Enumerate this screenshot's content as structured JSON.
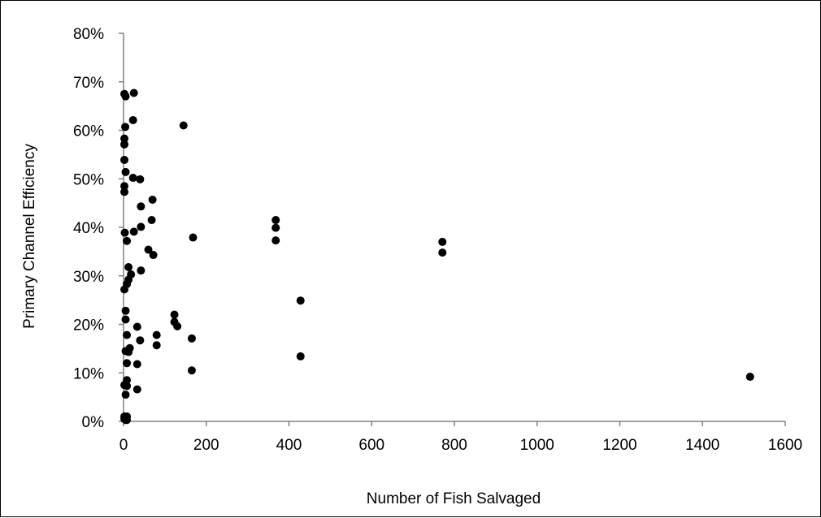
{
  "chart_data": {
    "type": "scatter",
    "title": "",
    "xlabel": "Number of Fish Salvaged",
    "ylabel": "Primary Channel Efficiency",
    "xlim": [
      0,
      1600
    ],
    "ylim": [
      0,
      0.8
    ],
    "x_ticks": [
      0,
      200,
      400,
      600,
      800,
      1000,
      1200,
      1400,
      1600
    ],
    "x_tick_labels": [
      "0",
      "200",
      "400",
      "600",
      "800",
      "1000",
      "1200",
      "1400",
      "1600"
    ],
    "y_ticks": [
      0,
      0.1,
      0.2,
      0.3,
      0.4,
      0.5,
      0.6,
      0.7,
      0.8
    ],
    "y_tick_labels": [
      "0%",
      "10%",
      "20%",
      "30%",
      "40%",
      "50%",
      "60%",
      "70%",
      "80%"
    ],
    "grid": false,
    "legend": "none",
    "marker_color": "#000000",
    "series": [
      {
        "points": [
          [
            2,
            0.675
          ],
          [
            5,
            0.67
          ],
          [
            25,
            0.677
          ],
          [
            23,
            0.621
          ],
          [
            145,
            0.61
          ],
          [
            4,
            0.607
          ],
          [
            2,
            0.583
          ],
          [
            2,
            0.571
          ],
          [
            2,
            0.539
          ],
          [
            5,
            0.514
          ],
          [
            23,
            0.502
          ],
          [
            40,
            0.499
          ],
          [
            2,
            0.485
          ],
          [
            2,
            0.473
          ],
          [
            70,
            0.457
          ],
          [
            42,
            0.443
          ],
          [
            368,
            0.415
          ],
          [
            68,
            0.415
          ],
          [
            368,
            0.399
          ],
          [
            42,
            0.401
          ],
          [
            25,
            0.391
          ],
          [
            3,
            0.389
          ],
          [
            168,
            0.379
          ],
          [
            8,
            0.372
          ],
          [
            368,
            0.373
          ],
          [
            771,
            0.37
          ],
          [
            60,
            0.354
          ],
          [
            771,
            0.348
          ],
          [
            72,
            0.343
          ],
          [
            12,
            0.318
          ],
          [
            42,
            0.311
          ],
          [
            18,
            0.303
          ],
          [
            12,
            0.292
          ],
          [
            8,
            0.283
          ],
          [
            2,
            0.272
          ],
          [
            5,
            0.228
          ],
          [
            123,
            0.22
          ],
          [
            123,
            0.205
          ],
          [
            5,
            0.21
          ],
          [
            130,
            0.196
          ],
          [
            33,
            0.195
          ],
          [
            428,
            0.249
          ],
          [
            8,
            0.178
          ],
          [
            80,
            0.178
          ],
          [
            165,
            0.171
          ],
          [
            40,
            0.167
          ],
          [
            80,
            0.157
          ],
          [
            15,
            0.151
          ],
          [
            5,
            0.145
          ],
          [
            12,
            0.143
          ],
          [
            428,
            0.134
          ],
          [
            8,
            0.12
          ],
          [
            33,
            0.118
          ],
          [
            165,
            0.105
          ],
          [
            1515,
            0.092
          ],
          [
            8,
            0.085
          ],
          [
            2,
            0.075
          ],
          [
            8,
            0.073
          ],
          [
            33,
            0.066
          ],
          [
            5,
            0.055
          ],
          [
            2,
            0.01
          ],
          [
            2,
            0.005
          ],
          [
            8,
            0.01
          ],
          [
            5,
            0.003
          ],
          [
            8,
            0.003
          ]
        ]
      }
    ]
  }
}
